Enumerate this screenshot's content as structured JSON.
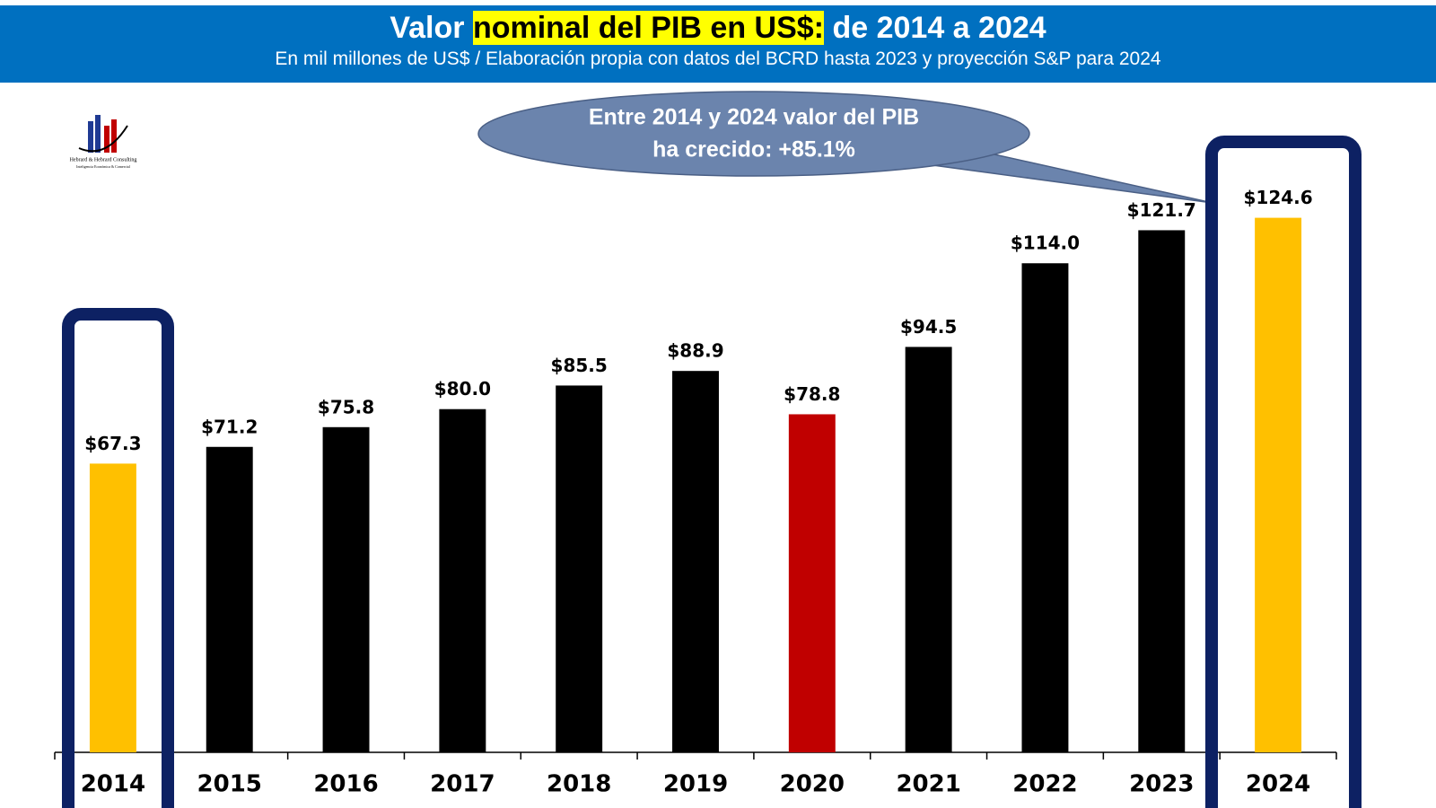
{
  "chart_data": {
    "type": "bar",
    "title": [
      "Valor",
      "nominal del PIB en US$:",
      "de 2014 a 2024"
    ],
    "subtitle": "En mil millones de US$ / Elaboración propia con datos del BCRD hasta 2023 y proyección S&P para 2024",
    "annotation": [
      "Entre 2014 y 2024 valor del PIB",
      "ha crecido: +85.1%"
    ],
    "logo": [
      "Hebrard & Hebrard Consulting",
      "Inteligencia Económica & Comercial"
    ],
    "categories": [
      "2014",
      "2015",
      "2016",
      "2017",
      "2018",
      "2019",
      "2020",
      "2021",
      "2022",
      "2023",
      "2024"
    ],
    "values": [
      67.3,
      71.2,
      75.8,
      80.0,
      85.5,
      88.9,
      78.8,
      94.5,
      114.0,
      121.7,
      124.6
    ],
    "value_labels": [
      "$67.3",
      "$71.2",
      "$75.8",
      "$80.0",
      "$85.5",
      "$88.9",
      "$78.8",
      "$94.5",
      "$114.0",
      "$121.7",
      "$124.6"
    ],
    "colors": [
      "#ffc000",
      "#000000",
      "#000000",
      "#000000",
      "#000000",
      "#000000",
      "#c00000",
      "#000000",
      "#000000",
      "#000000",
      "#ffc000"
    ],
    "ylim": [
      0,
      140
    ]
  }
}
